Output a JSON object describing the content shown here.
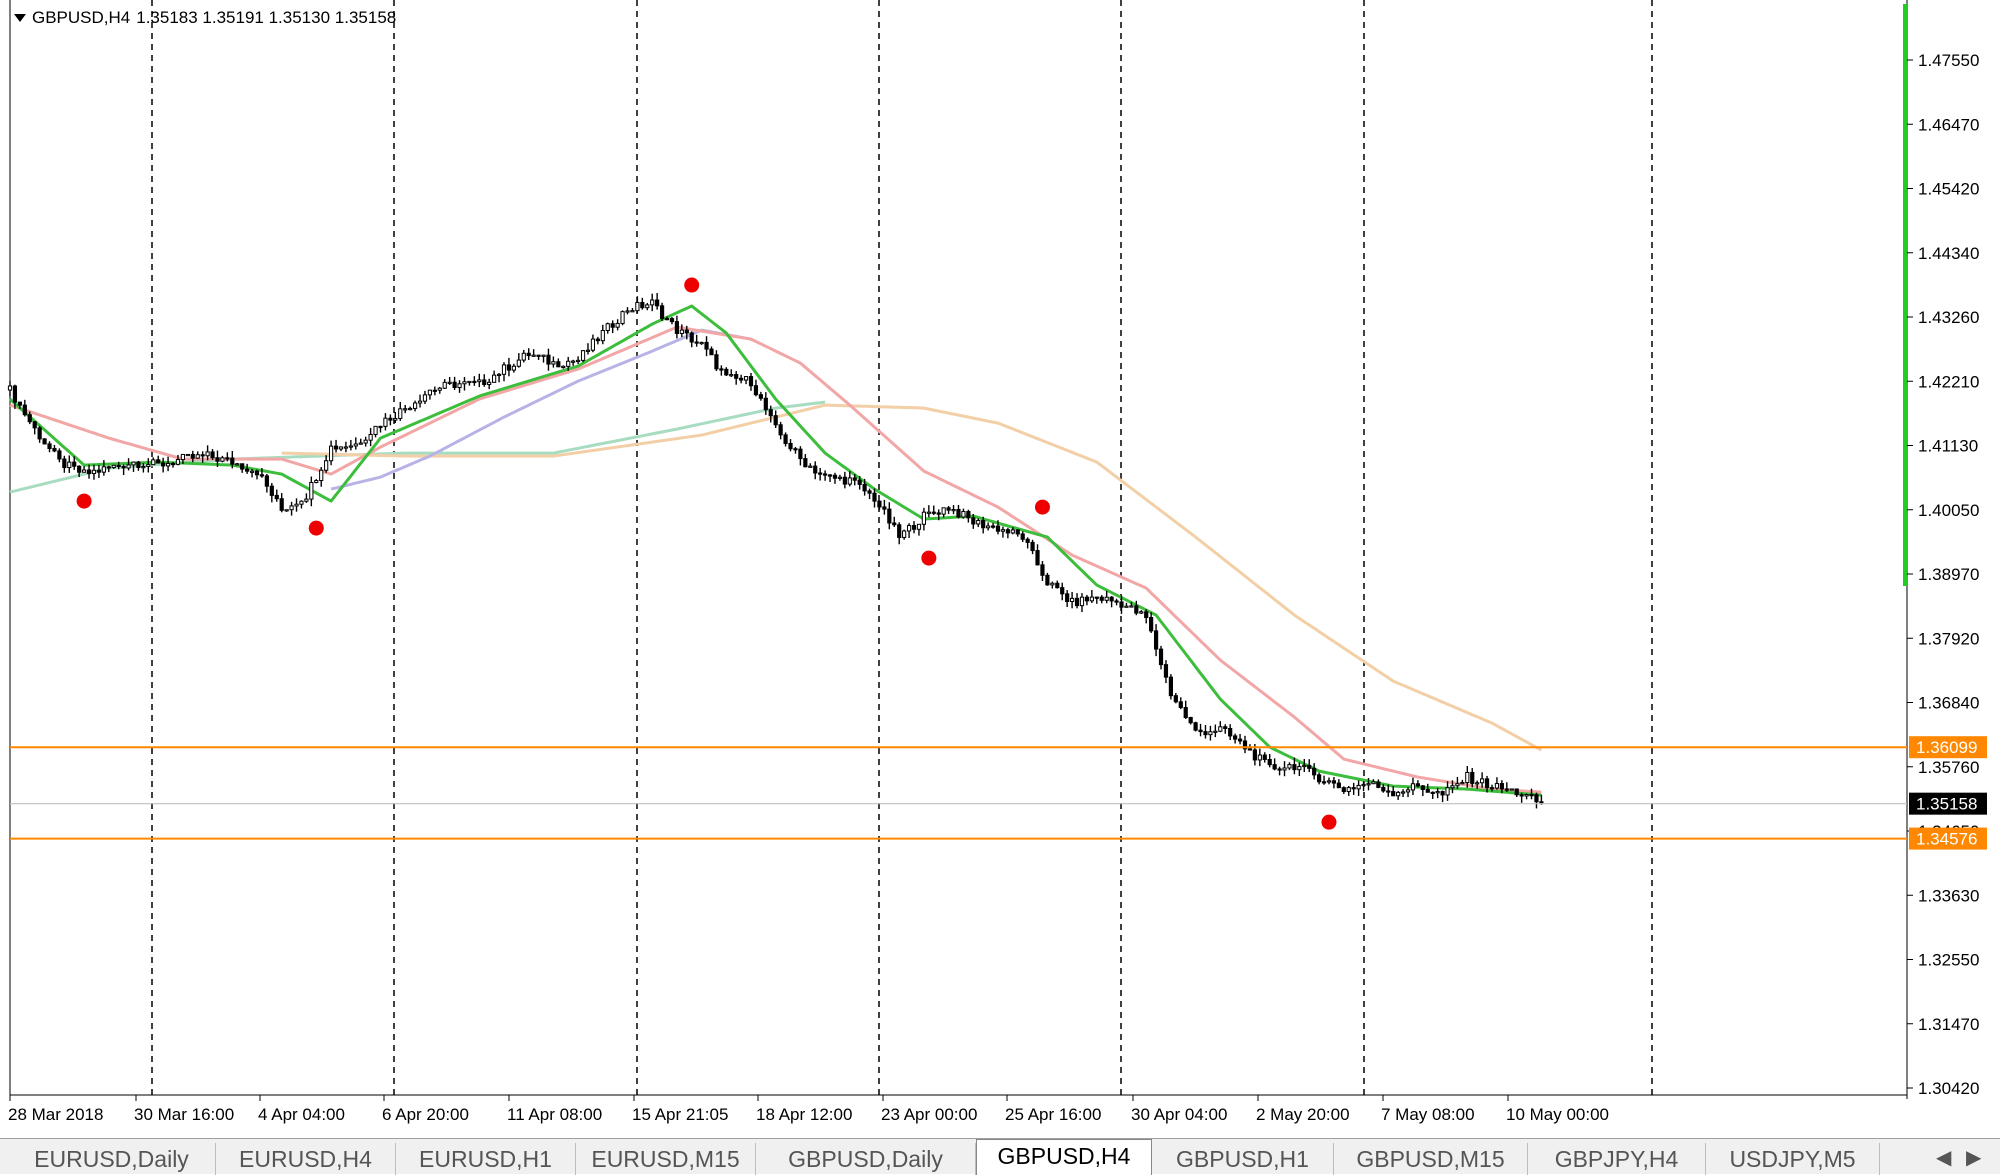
{
  "header": {
    "symbol_label": "GBPUSD,H4",
    "ohlc": "1.35183 1.35191 1.35130 1.35158"
  },
  "colors": {
    "grid": "#000000",
    "candle_up": "#000000",
    "candle_down": "#000000",
    "ema_fast": "#3cbe3c",
    "ema_mid": "#f2a6a6",
    "ema_slow_lavender": "#b8b3e6",
    "ema_200": "#f2cfa6",
    "ema_long_green": "#a8dcc0",
    "level_lines": "#ff8800",
    "fractal": "#ee0000",
    "vol_bar": "#22cc22",
    "current_price_bg": "#000000"
  },
  "price_axis": {
    "ticks": [
      "1.47550",
      "1.46470",
      "1.45420",
      "1.44340",
      "1.43260",
      "1.42210",
      "1.41130",
      "1.40050",
      "1.38970",
      "1.37920",
      "1.36840",
      "1.35760",
      "1.34650",
      "1.33630",
      "1.32550",
      "1.31470",
      "1.30420"
    ],
    "levels": [
      {
        "label": "1.36099",
        "value": 1.36099
      },
      {
        "label": "1.34576",
        "value": 1.34576
      }
    ],
    "current": {
      "label": "1.35158",
      "value": 1.35158
    }
  },
  "time_axis": {
    "labels": [
      "28 Mar 2018",
      "30 Mar 16:00",
      "4 Apr 04:00",
      "6 Apr 20:00",
      "11 Apr 08:00",
      "15 Apr 21:05",
      "18 Apr 12:00",
      "23 Apr 00:00",
      "25 Apr 16:00",
      "30 Apr 04:00",
      "2 May 20:00",
      "7 May 08:00",
      "10 May 00:00"
    ]
  },
  "tabs": [
    {
      "label": "EURUSD,Daily",
      "active": false
    },
    {
      "label": "EURUSD,H4",
      "active": false
    },
    {
      "label": "EURUSD,H1",
      "active": false
    },
    {
      "label": "EURUSD,M15",
      "active": false
    },
    {
      "label": "GBPUSD,Daily",
      "active": false
    },
    {
      "label": "GBPUSD,H4",
      "active": true
    },
    {
      "label": "GBPUSD,H1",
      "active": false
    },
    {
      "label": "GBPUSD,M15",
      "active": false
    },
    {
      "label": "GBPJPY,H4",
      "active": false
    },
    {
      "label": "USDJPY,M5",
      "active": false
    }
  ],
  "tab_scroll": {
    "left_icon": "arrow-left-icon",
    "right_icon": "arrow-right-icon",
    "left": "◀",
    "right": "▶"
  },
  "chart_data": {
    "type": "candlestick",
    "symbol": "GBPUSD",
    "timeframe": "H4",
    "ylim": [
      1.3042,
      1.4755
    ],
    "grid": "vertical dashed separators",
    "close_path": [
      [
        0,
        1.4205
      ],
      [
        5,
        1.414
      ],
      [
        10,
        1.4085
      ],
      [
        15,
        1.4065
      ],
      [
        20,
        1.4075
      ],
      [
        25,
        1.4085
      ],
      [
        30,
        1.408
      ],
      [
        35,
        1.409
      ],
      [
        40,
        1.4095
      ],
      [
        45,
        1.4085
      ],
      [
        50,
        1.407
      ],
      [
        55,
        1.4005
      ],
      [
        60,
        1.403
      ],
      [
        65,
        1.411
      ],
      [
        70,
        1.4115
      ],
      [
        75,
        1.415
      ],
      [
        80,
        1.4175
      ],
      [
        85,
        1.4205
      ],
      [
        90,
        1.4215
      ],
      [
        95,
        1.4215
      ],
      [
        100,
        1.424
      ],
      [
        105,
        1.4265
      ],
      [
        110,
        1.425
      ],
      [
        115,
        1.4255
      ],
      [
        120,
        1.43
      ],
      [
        125,
        1.434
      ],
      [
        130,
        1.435
      ],
      [
        135,
        1.4305
      ],
      [
        140,
        1.428
      ],
      [
        145,
        1.4225
      ],
      [
        150,
        1.422
      ],
      [
        155,
        1.414
      ],
      [
        160,
        1.409
      ],
      [
        165,
        1.406
      ],
      [
        170,
        1.4055
      ],
      [
        175,
        1.4025
      ],
      [
        180,
        1.396
      ],
      [
        185,
        1.3995
      ],
      [
        190,
        1.401
      ],
      [
        195,
        1.3985
      ],
      [
        200,
        1.3975
      ],
      [
        205,
        1.396
      ],
      [
        210,
        1.3885
      ],
      [
        215,
        1.385
      ],
      [
        220,
        1.386
      ],
      [
        225,
        1.385
      ],
      [
        230,
        1.3825
      ],
      [
        235,
        1.37
      ],
      [
        240,
        1.3635
      ],
      [
        245,
        1.364
      ],
      [
        250,
        1.361
      ],
      [
        255,
        1.3575
      ],
      [
        260,
        1.358
      ],
      [
        265,
        1.356
      ],
      [
        270,
        1.354
      ],
      [
        275,
        1.355
      ],
      [
        280,
        1.3535
      ],
      [
        285,
        1.3545
      ],
      [
        290,
        1.353
      ],
      [
        295,
        1.356
      ],
      [
        300,
        1.3545
      ],
      [
        305,
        1.3535
      ],
      [
        310,
        1.3516
      ]
    ],
    "fractals": [
      {
        "bar": 15,
        "price": 1.402
      },
      {
        "bar": 62,
        "price": 1.3975
      },
      {
        "bar": 138,
        "price": 1.438
      },
      {
        "bar": 186,
        "price": 1.3925
      },
      {
        "bar": 209,
        "price": 1.401
      },
      {
        "bar": 267,
        "price": 1.3485
      }
    ],
    "moving_averages": [
      {
        "name": "ema_fast",
        "points": [
          [
            0,
            1.419
          ],
          [
            15,
            1.408
          ],
          [
            30,
            1.4085
          ],
          [
            45,
            1.408
          ],
          [
            55,
            1.4065
          ],
          [
            65,
            1.402
          ],
          [
            75,
            1.4125
          ],
          [
            95,
            1.4195
          ],
          [
            115,
            1.4245
          ],
          [
            130,
            1.4315
          ],
          [
            138,
            1.4345
          ],
          [
            145,
            1.43
          ],
          [
            155,
            1.419
          ],
          [
            165,
            1.41
          ],
          [
            175,
            1.404
          ],
          [
            185,
            1.399
          ],
          [
            195,
            1.3995
          ],
          [
            210,
            1.396
          ],
          [
            220,
            1.388
          ],
          [
            232,
            1.383
          ],
          [
            245,
            1.369
          ],
          [
            255,
            1.361
          ],
          [
            265,
            1.357
          ],
          [
            280,
            1.3545
          ],
          [
            295,
            1.354
          ],
          [
            310,
            1.353
          ]
        ]
      },
      {
        "name": "ema_mid",
        "points": [
          [
            0,
            1.418
          ],
          [
            20,
            1.4125
          ],
          [
            35,
            1.409
          ],
          [
            55,
            1.409
          ],
          [
            65,
            1.4065
          ],
          [
            75,
            1.411
          ],
          [
            95,
            1.419
          ],
          [
            115,
            1.424
          ],
          [
            135,
            1.431
          ],
          [
            150,
            1.429
          ],
          [
            160,
            1.425
          ],
          [
            170,
            1.418
          ],
          [
            185,
            1.407
          ],
          [
            200,
            1.401
          ],
          [
            215,
            1.393
          ],
          [
            230,
            1.3875
          ],
          [
            245,
            1.3755
          ],
          [
            260,
            1.366
          ],
          [
            270,
            1.359
          ],
          [
            285,
            1.356
          ],
          [
            300,
            1.354
          ],
          [
            310,
            1.3535
          ]
        ]
      },
      {
        "name": "ema_slow_lavender",
        "points": [
          [
            65,
            1.404
          ],
          [
            75,
            1.406
          ],
          [
            85,
            1.4095
          ],
          [
            100,
            1.416
          ],
          [
            115,
            1.422
          ],
          [
            130,
            1.427
          ],
          [
            140,
            1.4305
          ],
          [
            150,
            1.429
          ]
        ]
      },
      {
        "name": "ema_200",
        "points": [
          [
            55,
            1.41
          ],
          [
            80,
            1.4095
          ],
          [
            110,
            1.4095
          ],
          [
            140,
            1.413
          ],
          [
            165,
            1.418
          ],
          [
            185,
            1.4175
          ],
          [
            200,
            1.415
          ],
          [
            220,
            1.4085
          ],
          [
            240,
            1.396
          ],
          [
            260,
            1.383
          ],
          [
            280,
            1.372
          ],
          [
            300,
            1.365
          ],
          [
            310,
            1.3605
          ]
        ]
      },
      {
        "name": "ema_long_green",
        "points": [
          [
            0,
            1.4035
          ],
          [
            20,
            1.4075
          ],
          [
            45,
            1.409
          ],
          [
            80,
            1.41
          ],
          [
            110,
            1.41
          ],
          [
            135,
            1.414
          ],
          [
            155,
            1.4175
          ],
          [
            165,
            1.4185
          ]
        ]
      }
    ]
  }
}
